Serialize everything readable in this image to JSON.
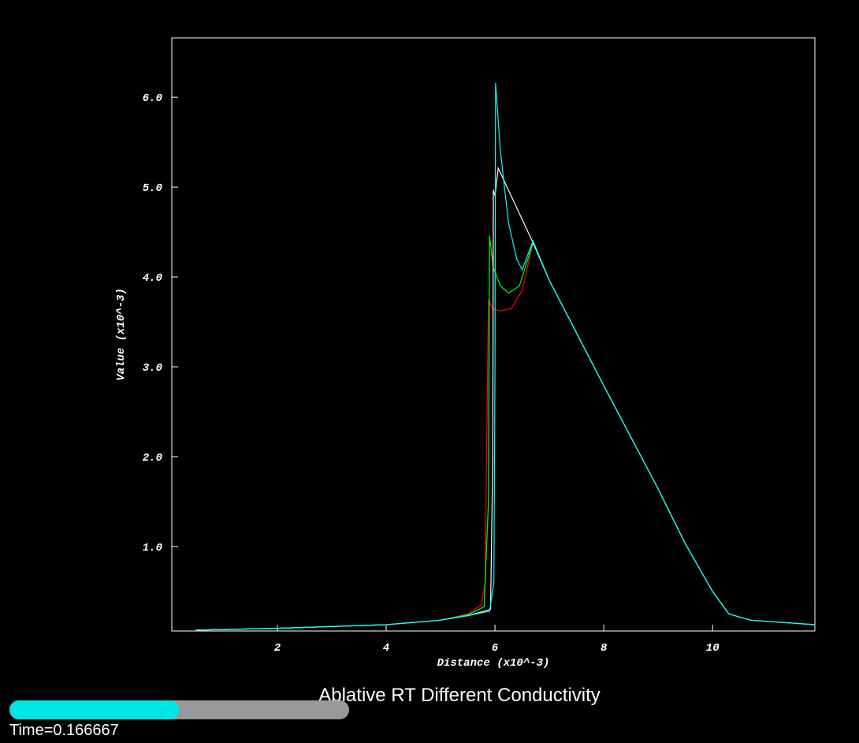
{
  "chart_data": {
    "type": "line",
    "title": "Ablative RT Different Conductivity",
    "x_label": "Distance (x10^-3)",
    "y_label": "Value (x10^-3)",
    "time_label": "Time=0.166667",
    "progress": 0.5,
    "xlim": [
      0.06,
      11.88
    ],
    "ylim": [
      0.06,
      6.66
    ],
    "xticks": [
      2,
      4,
      6,
      8,
      10
    ],
    "yticks": [
      {
        "value": 1,
        "label": "1.0"
      },
      {
        "value": 2,
        "label": "2.0"
      },
      {
        "value": 3,
        "label": "3.0"
      },
      {
        "value": 4,
        "label": "4.0"
      },
      {
        "value": 5,
        "label": "5.0"
      },
      {
        "value": 6,
        "label": "6.0"
      }
    ],
    "series": [
      {
        "color": "#ff0000",
        "x": [
          0.5,
          2,
          4,
          5,
          5.5,
          5.75,
          5.82,
          5.85,
          5.88,
          5.95,
          6.1,
          6.3,
          6.5,
          6.7,
          7,
          8,
          9,
          9.5,
          10,
          10.3,
          10.7,
          11.88
        ],
        "values": [
          0.07,
          0.09,
          0.13,
          0.18,
          0.25,
          0.35,
          0.6,
          2.2,
          3.75,
          3.65,
          3.62,
          3.65,
          3.85,
          4.38,
          3.96,
          2.79,
          1.64,
          1.03,
          0.5,
          0.25,
          0.18,
          0.13
        ]
      },
      {
        "color": "#00ff00",
        "x": [
          0.5,
          2,
          4,
          5,
          5.5,
          5.8,
          5.88,
          5.9,
          5.97,
          6.1,
          6.25,
          6.45,
          6.7,
          7,
          8,
          9,
          9.5,
          10,
          10.3,
          10.7,
          11.88
        ],
        "values": [
          0.07,
          0.09,
          0.13,
          0.18,
          0.24,
          0.33,
          1.5,
          4.46,
          4.1,
          3.9,
          3.82,
          3.9,
          4.38,
          3.96,
          2.79,
          1.64,
          1.03,
          0.5,
          0.25,
          0.18,
          0.13
        ]
      },
      {
        "color": "#ffffff",
        "x": [
          0.5,
          2,
          4,
          5,
          5.5,
          5.92,
          5.96,
          5.97,
          6.0,
          6.06,
          6.7,
          7,
          8,
          9,
          9.5,
          10,
          10.3,
          10.7,
          11.88
        ],
        "values": [
          0.07,
          0.09,
          0.13,
          0.18,
          0.23,
          0.3,
          2,
          4.97,
          4.9,
          5.21,
          4.38,
          3.96,
          2.79,
          1.64,
          1.03,
          0.5,
          0.25,
          0.18,
          0.13
        ]
      },
      {
        "color": "#00ffff",
        "x": [
          0.5,
          2,
          4,
          5,
          5.5,
          5.9,
          5.98,
          6.0,
          6.01,
          6.1,
          6.25,
          6.4,
          6.5,
          6.7,
          7,
          8,
          9,
          9.5,
          10,
          10.3,
          10.7,
          11.88
        ],
        "values": [
          0.07,
          0.09,
          0.13,
          0.18,
          0.23,
          0.28,
          0.6,
          3,
          6.16,
          5.4,
          4.6,
          4.2,
          4.08,
          4.4,
          3.96,
          2.79,
          1.64,
          1.03,
          0.5,
          0.25,
          0.18,
          0.13
        ]
      }
    ]
  }
}
